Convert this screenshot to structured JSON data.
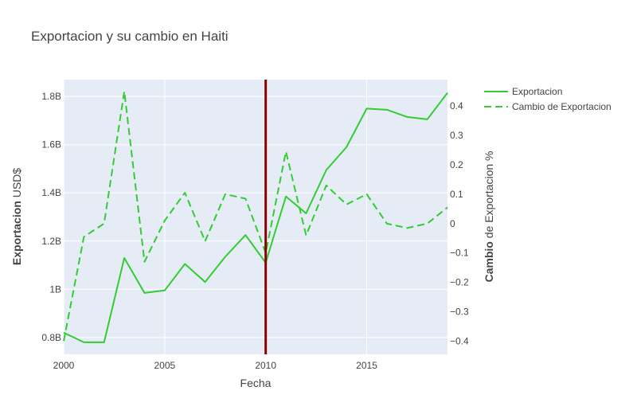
{
  "chart_data": {
    "type": "line",
    "title": "Exportacion y su cambio en Haiti",
    "xlabel": "Fecha",
    "ylabel_bold": "Exportacion",
    "ylabel_rest": " USD$",
    "y2label_bold": "Cambio",
    "y2label_rest": " de Exportacion %",
    "xlim": [
      2000,
      2019
    ],
    "ylim": [
      0.73,
      1.87
    ],
    "y2lim": [
      -0.445,
      0.49
    ],
    "x_ticks": [
      "2000",
      "2005",
      "2010",
      "2015"
    ],
    "y_ticks": [
      {
        "value": 0.8,
        "label": "0.8B"
      },
      {
        "value": 1.0,
        "label": "1B"
      },
      {
        "value": 1.2,
        "label": "1.2B"
      },
      {
        "value": 1.4,
        "label": "1.4B"
      },
      {
        "value": 1.6,
        "label": "1.6B"
      },
      {
        "value": 1.8,
        "label": "1.8B"
      }
    ],
    "y2_ticks": [
      {
        "value": -0.4,
        "label": "−0.4"
      },
      {
        "value": -0.3,
        "label": "−0.3"
      },
      {
        "value": -0.2,
        "label": "−0.2"
      },
      {
        "value": -0.1,
        "label": "−0.1"
      },
      {
        "value": 0,
        "label": "0"
      },
      {
        "value": 0.1,
        "label": "0.1"
      },
      {
        "value": 0.2,
        "label": "0.2"
      },
      {
        "value": 0.3,
        "label": "0.3"
      },
      {
        "value": 0.4,
        "label": "0.4"
      }
    ],
    "x": [
      2000,
      2001,
      2002,
      2003,
      2004,
      2005,
      2006,
      2007,
      2008,
      2009,
      2010,
      2011,
      2012,
      2013,
      2014,
      2015,
      2016,
      2017,
      2018,
      2019
    ],
    "series": [
      {
        "name": "Exportacion",
        "axis": "y",
        "dash": "solid",
        "color": "#33cc33",
        "values": [
          0.82,
          0.78,
          0.78,
          1.13,
          0.985,
          0.995,
          1.105,
          1.03,
          1.135,
          1.225,
          1.11,
          1.385,
          1.315,
          1.495,
          1.59,
          1.75,
          1.745,
          1.715,
          1.705,
          1.815
        ]
      },
      {
        "name": "Cambio de Exportacion",
        "axis": "y2",
        "dash": "dash",
        "color": "#33cc33",
        "values": [
          -0.4,
          -0.045,
          0.0,
          0.45,
          -0.13,
          0.01,
          0.105,
          -0.06,
          0.1,
          0.085,
          -0.1,
          0.245,
          -0.04,
          0.13,
          0.065,
          0.1,
          0.0,
          -0.015,
          0.0,
          0.055
        ]
      }
    ],
    "vline": {
      "x": 2010,
      "color": "#8b0000"
    },
    "legend_position": "top-right",
    "grid": true
  }
}
